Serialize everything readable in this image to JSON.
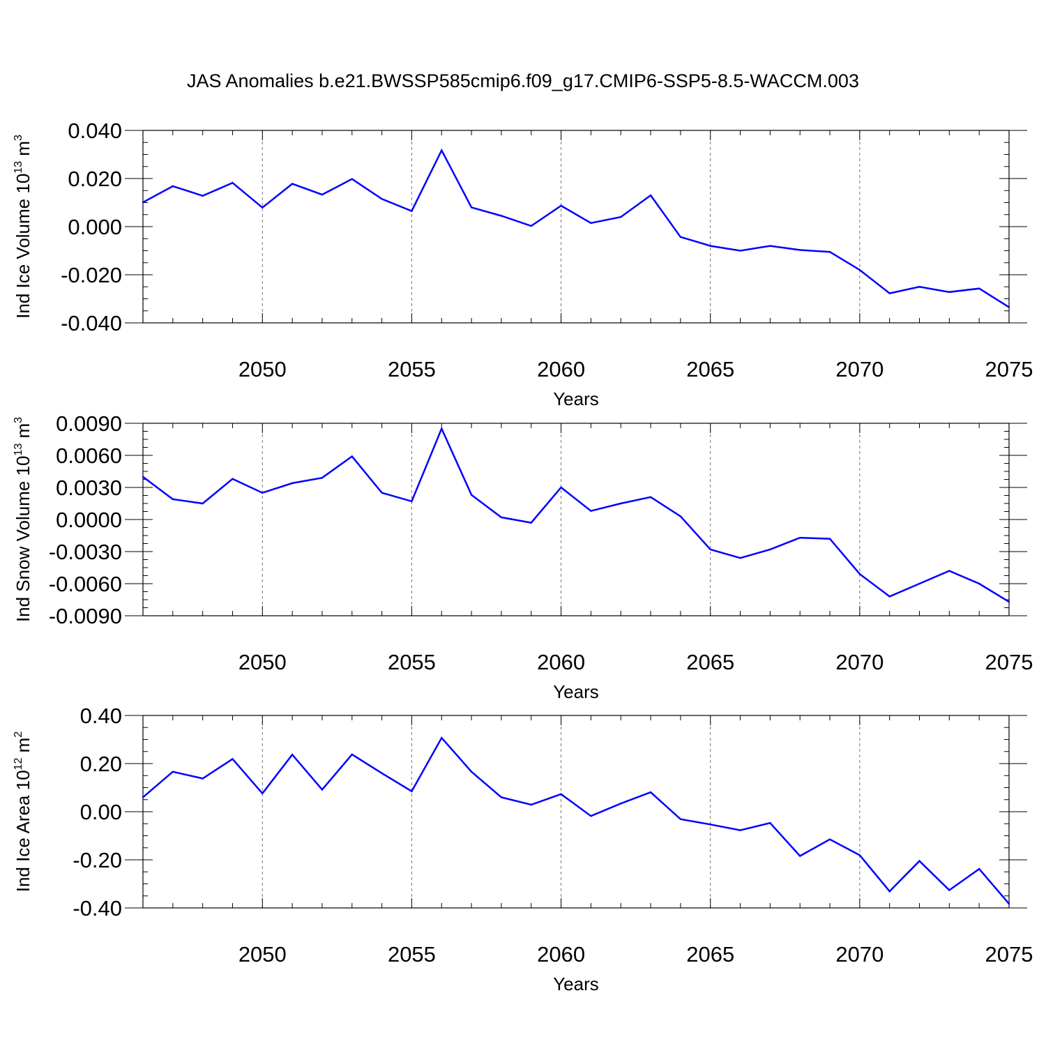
{
  "title": "JAS Anomalies b.e21.BWSSP585cmip6.f09_g17.CMIP6-SSP5-8.5-WACCM.003",
  "colors": {
    "line": "#0000ff",
    "axis": "#000000",
    "grid": "#000000"
  },
  "chart_data": [
    {
      "type": "line",
      "ylabel_prefix": "Ind Ice Volume 10",
      "ylabel_exp": "13",
      "ylabel_unit": "m",
      "ylabel_unit_exp": "3",
      "xlabel": "Years",
      "xlim": [
        2046,
        2075
      ],
      "ylim": [
        -0.04,
        0.04
      ],
      "yticks": [
        0.04,
        0.02,
        0.0,
        -0.02,
        -0.04
      ],
      "ytick_labels": [
        "0.040",
        "0.020",
        "0.000",
        "-0.020",
        "-0.040"
      ],
      "xticks": [
        2050,
        2055,
        2060,
        2065,
        2070,
        2075
      ],
      "xtick_labels": [
        "2050",
        "2055",
        "2060",
        "2065",
        "2070",
        "2075"
      ],
      "grid": "vertical dashed at major x ticks",
      "x": [
        2046,
        2047,
        2048,
        2049,
        2050,
        2051,
        2052,
        2053,
        2054,
        2055,
        2056,
        2057,
        2058,
        2059,
        2060,
        2061,
        2062,
        2063,
        2064,
        2065,
        2066,
        2067,
        2068,
        2069,
        2070,
        2071,
        2072,
        2073,
        2074,
        2075
      ],
      "values": [
        0.0101,
        0.0168,
        0.0128,
        0.0182,
        0.0079,
        0.0178,
        0.0133,
        0.0198,
        0.0115,
        0.0065,
        0.0317,
        0.008,
        0.0045,
        0.0003,
        0.0087,
        0.0015,
        0.004,
        0.013,
        -0.0043,
        -0.008,
        -0.01,
        -0.008,
        -0.0097,
        -0.0105,
        -0.018,
        -0.0277,
        -0.025,
        -0.0272,
        -0.0257,
        -0.0335
      ]
    },
    {
      "type": "line",
      "ylabel_prefix": "Ind Snow Volume 10",
      "ylabel_exp": "13",
      "ylabel_unit": "m",
      "ylabel_unit_exp": "3",
      "xlabel": "Years",
      "xlim": [
        2046,
        2075
      ],
      "ylim": [
        -0.009,
        0.009
      ],
      "yticks": [
        0.009,
        0.006,
        0.003,
        0.0,
        -0.003,
        -0.006,
        -0.009
      ],
      "ytick_labels": [
        "0.0090",
        "0.0060",
        "0.0030",
        "0.0000",
        "-0.0030",
        "-0.0060",
        "-0.0090"
      ],
      "xticks": [
        2050,
        2055,
        2060,
        2065,
        2070,
        2075
      ],
      "xtick_labels": [
        "2050",
        "2055",
        "2060",
        "2065",
        "2070",
        "2075"
      ],
      "grid": "vertical dashed at major x ticks",
      "x": [
        2046,
        2047,
        2048,
        2049,
        2050,
        2051,
        2052,
        2053,
        2054,
        2055,
        2056,
        2057,
        2058,
        2059,
        2060,
        2061,
        2062,
        2063,
        2064,
        2065,
        2066,
        2067,
        2068,
        2069,
        2070,
        2071,
        2072,
        2073,
        2074,
        2075
      ],
      "values": [
        0.004,
        0.0019,
        0.0015,
        0.0038,
        0.0025,
        0.0034,
        0.0039,
        0.0059,
        0.0025,
        0.0017,
        0.0085,
        0.0023,
        0.0002,
        -0.0003,
        0.003,
        0.0008,
        0.0015,
        0.0021,
        0.0003,
        -0.0028,
        -0.0036,
        -0.0028,
        -0.0017,
        -0.0018,
        -0.0051,
        -0.0072,
        -0.006,
        -0.0048,
        -0.006,
        -0.0077
      ]
    },
    {
      "type": "line",
      "ylabel_prefix": "Ind Ice Area 10",
      "ylabel_exp": "12",
      "ylabel_unit": "m",
      "ylabel_unit_exp": "2",
      "xlabel": "Years",
      "xlim": [
        2046,
        2075
      ],
      "ylim": [
        -0.4,
        0.4
      ],
      "yticks": [
        0.4,
        0.2,
        0.0,
        -0.2,
        -0.4
      ],
      "ytick_labels": [
        "0.40",
        "0.20",
        "0.00",
        "-0.20",
        "-0.40"
      ],
      "xticks": [
        2050,
        2055,
        2060,
        2065,
        2070,
        2075
      ],
      "xtick_labels": [
        "2050",
        "2055",
        "2060",
        "2065",
        "2070",
        "2075"
      ],
      "grid": "vertical dashed at major x ticks",
      "x": [
        2046,
        2047,
        2048,
        2049,
        2050,
        2051,
        2052,
        2053,
        2054,
        2055,
        2056,
        2057,
        2058,
        2059,
        2060,
        2061,
        2062,
        2063,
        2064,
        2065,
        2066,
        2067,
        2068,
        2069,
        2070,
        2071,
        2072,
        2073,
        2074,
        2075
      ],
      "values": [
        0.06,
        0.166,
        0.138,
        0.219,
        0.076,
        0.237,
        0.092,
        0.238,
        0.16,
        0.085,
        0.307,
        0.166,
        0.06,
        0.029,
        0.073,
        -0.018,
        0.034,
        0.081,
        -0.031,
        -0.053,
        -0.077,
        -0.047,
        -0.184,
        -0.115,
        -0.181,
        -0.331,
        -0.205,
        -0.326,
        -0.238,
        -0.383
      ]
    }
  ]
}
